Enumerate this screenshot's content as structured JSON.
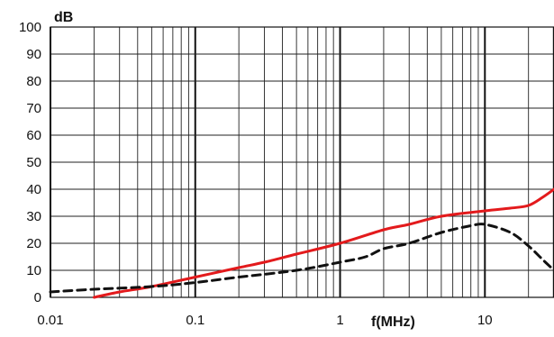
{
  "chart_data": {
    "type": "line",
    "title": "",
    "xlabel": "f(MHz)",
    "ylabel": "dB",
    "x_scale": "log",
    "xlim": [
      0.01,
      30
    ],
    "ylim": [
      0,
      100
    ],
    "x_ticks": [
      {
        "value": 0.01,
        "label": "0.01"
      },
      {
        "value": 0.1,
        "label": "0.1"
      },
      {
        "value": 1,
        "label": "1"
      },
      {
        "value": 10,
        "label": "10"
      }
    ],
    "y_ticks": [
      {
        "value": 0,
        "label": "0"
      },
      {
        "value": 10,
        "label": "10"
      },
      {
        "value": 20,
        "label": "20"
      },
      {
        "value": 30,
        "label": "30"
      },
      {
        "value": 40,
        "label": "40"
      },
      {
        "value": 50,
        "label": "50"
      },
      {
        "value": 60,
        "label": "60"
      },
      {
        "value": 70,
        "label": "70"
      },
      {
        "value": 80,
        "label": "80"
      },
      {
        "value": 90,
        "label": "90"
      },
      {
        "value": 100,
        "label": "100"
      }
    ],
    "grid": true,
    "series": [
      {
        "color": "#e31a1c",
        "style": "solid",
        "points": [
          {
            "x": 0.02,
            "y": 0
          },
          {
            "x": 0.03,
            "y": 2
          },
          {
            "x": 0.05,
            "y": 4
          },
          {
            "x": 0.1,
            "y": 7.5
          },
          {
            "x": 0.2,
            "y": 11
          },
          {
            "x": 0.3,
            "y": 13
          },
          {
            "x": 0.5,
            "y": 16
          },
          {
            "x": 1,
            "y": 20
          },
          {
            "x": 2,
            "y": 25
          },
          {
            "x": 3,
            "y": 27
          },
          {
            "x": 5,
            "y": 30
          },
          {
            "x": 10,
            "y": 32
          },
          {
            "x": 15,
            "y": 33
          },
          {
            "x": 20,
            "y": 34
          },
          {
            "x": 25,
            "y": 37
          },
          {
            "x": 30,
            "y": 40
          }
        ]
      },
      {
        "color": "#111111",
        "style": "dashed",
        "points": [
          {
            "x": 0.01,
            "y": 2
          },
          {
            "x": 0.02,
            "y": 3
          },
          {
            "x": 0.05,
            "y": 4
          },
          {
            "x": 0.1,
            "y": 5.5
          },
          {
            "x": 0.2,
            "y": 7.5
          },
          {
            "x": 0.5,
            "y": 10
          },
          {
            "x": 1,
            "y": 13
          },
          {
            "x": 1.5,
            "y": 15
          },
          {
            "x": 2,
            "y": 18
          },
          {
            "x": 3,
            "y": 20
          },
          {
            "x": 5,
            "y": 24
          },
          {
            "x": 8,
            "y": 26.5
          },
          {
            "x": 10,
            "y": 27
          },
          {
            "x": 15,
            "y": 24
          },
          {
            "x": 20,
            "y": 19
          },
          {
            "x": 25,
            "y": 14
          },
          {
            "x": 30,
            "y": 10
          }
        ]
      }
    ]
  }
}
